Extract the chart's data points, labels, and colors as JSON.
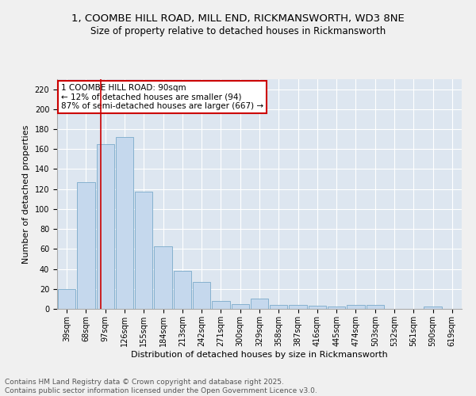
{
  "title_line1": "1, COOMBE HILL ROAD, MILL END, RICKMANSWORTH, WD3 8NE",
  "title_line2": "Size of property relative to detached houses in Rickmansworth",
  "xlabel": "Distribution of detached houses by size in Rickmansworth",
  "ylabel": "Number of detached properties",
  "categories": [
    "39sqm",
    "68sqm",
    "97sqm",
    "126sqm",
    "155sqm",
    "184sqm",
    "213sqm",
    "242sqm",
    "271sqm",
    "300sqm",
    "329sqm",
    "358sqm",
    "387sqm",
    "416sqm",
    "445sqm",
    "474sqm",
    "503sqm",
    "532sqm",
    "561sqm",
    "590sqm",
    "619sqm"
  ],
  "values": [
    20,
    127,
    165,
    172,
    117,
    63,
    38,
    27,
    8,
    5,
    10,
    4,
    4,
    3,
    2,
    4,
    4,
    0,
    0,
    2,
    0
  ],
  "bar_color": "#c5d8ed",
  "bar_edge_color": "#7aaaca",
  "red_line_x": 1.75,
  "annotation_text": "1 COOMBE HILL ROAD: 90sqm\n← 12% of detached houses are smaller (94)\n87% of semi-detached houses are larger (667) →",
  "annotation_box_color": "#ffffff",
  "annotation_box_edge": "#cc0000",
  "ylim": [
    0,
    230
  ],
  "yticks": [
    0,
    20,
    40,
    60,
    80,
    100,
    120,
    140,
    160,
    180,
    200,
    220
  ],
  "background_color": "#dde6f0",
  "grid_color": "#ffffff",
  "footer": "Contains HM Land Registry data © Crown copyright and database right 2025.\nContains public sector information licensed under the Open Government Licence v3.0.",
  "title_fontsize": 9.5,
  "subtitle_fontsize": 8.5,
  "axis_label_fontsize": 8,
  "tick_fontsize": 7,
  "footer_fontsize": 6.5,
  "annotation_fontsize": 7.5
}
